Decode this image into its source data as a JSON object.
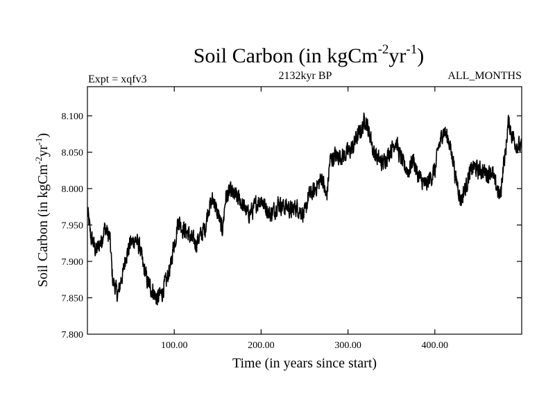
{
  "chart_data": {
    "type": "line",
    "title": {
      "main": "Soil Carbon (in kgCm",
      "exp1": "-2",
      "mid": "yr",
      "exp2": "-1",
      "end": ")"
    },
    "left_label": "Expt = xqfv3",
    "center_label": "2132kyr BP",
    "right_label": "ALL_MONTHS",
    "xlabel": "Time (in years since start)",
    "ylabel": {
      "main": "Soil Carbon (in kgCm",
      "exp1": "-2",
      "mid": "yr",
      "exp2": "-1",
      "end": ")"
    },
    "xlim": [
      0,
      500
    ],
    "ylim": [
      7.8,
      8.14
    ],
    "xticks": [
      100,
      200,
      300,
      400
    ],
    "xtick_labels": [
      "100.00",
      "200.00",
      "300.00",
      "400.00"
    ],
    "yticks": [
      7.8,
      7.85,
      7.9,
      7.95,
      8.0,
      8.05,
      8.1
    ],
    "ytick_labels": [
      "7.800",
      "7.850",
      "7.900",
      "7.950",
      "8.000",
      "8.050",
      "8.100"
    ],
    "series": [
      {
        "name": "Soil Carbon",
        "color": "#000000",
        "x": [
          0,
          5,
          10,
          15,
          20,
          25,
          30,
          35,
          40,
          45,
          50,
          55,
          60,
          65,
          70,
          75,
          80,
          85,
          90,
          95,
          100,
          105,
          110,
          115,
          120,
          125,
          130,
          135,
          140,
          145,
          150,
          155,
          160,
          165,
          170,
          175,
          180,
          185,
          190,
          195,
          200,
          205,
          210,
          215,
          220,
          225,
          230,
          235,
          240,
          245,
          250,
          255,
          260,
          265,
          270,
          275,
          280,
          285,
          290,
          295,
          300,
          305,
          310,
          315,
          320,
          325,
          330,
          335,
          340,
          345,
          350,
          355,
          360,
          365,
          370,
          375,
          380,
          385,
          390,
          395,
          400,
          405,
          410,
          415,
          420,
          425,
          430,
          435,
          440,
          445,
          450,
          455,
          460,
          465,
          470,
          475,
          480,
          485,
          490,
          495,
          500
        ],
        "y": [
          7.965,
          7.93,
          7.915,
          7.925,
          7.945,
          7.935,
          7.87,
          7.855,
          7.88,
          7.91,
          7.925,
          7.93,
          7.92,
          7.89,
          7.87,
          7.86,
          7.85,
          7.855,
          7.87,
          7.89,
          7.925,
          7.955,
          7.945,
          7.94,
          7.93,
          7.925,
          7.935,
          7.945,
          7.975,
          7.985,
          7.965,
          7.945,
          7.99,
          7.995,
          7.99,
          7.985,
          7.975,
          7.965,
          7.97,
          7.98,
          7.985,
          7.975,
          7.965,
          7.97,
          7.98,
          7.975,
          7.975,
          7.97,
          7.975,
          7.97,
          7.965,
          7.99,
          7.995,
          8.005,
          8.015,
          7.99,
          8.04,
          8.045,
          8.045,
          8.045,
          8.05,
          8.055,
          8.07,
          8.08,
          8.095,
          8.075,
          8.05,
          8.04,
          8.035,
          8.045,
          8.055,
          8.065,
          8.045,
          8.03,
          8.025,
          8.04,
          8.02,
          8.01,
          8.005,
          8.015,
          8.025,
          8.06,
          8.08,
          8.07,
          8.045,
          8.01,
          7.985,
          8.0,
          8.02,
          8.03,
          8.025,
          8.025,
          8.02,
          8.025,
          8.005,
          7.99,
          8.04,
          8.09,
          8.07,
          8.06,
          8.055
        ]
      }
    ]
  }
}
